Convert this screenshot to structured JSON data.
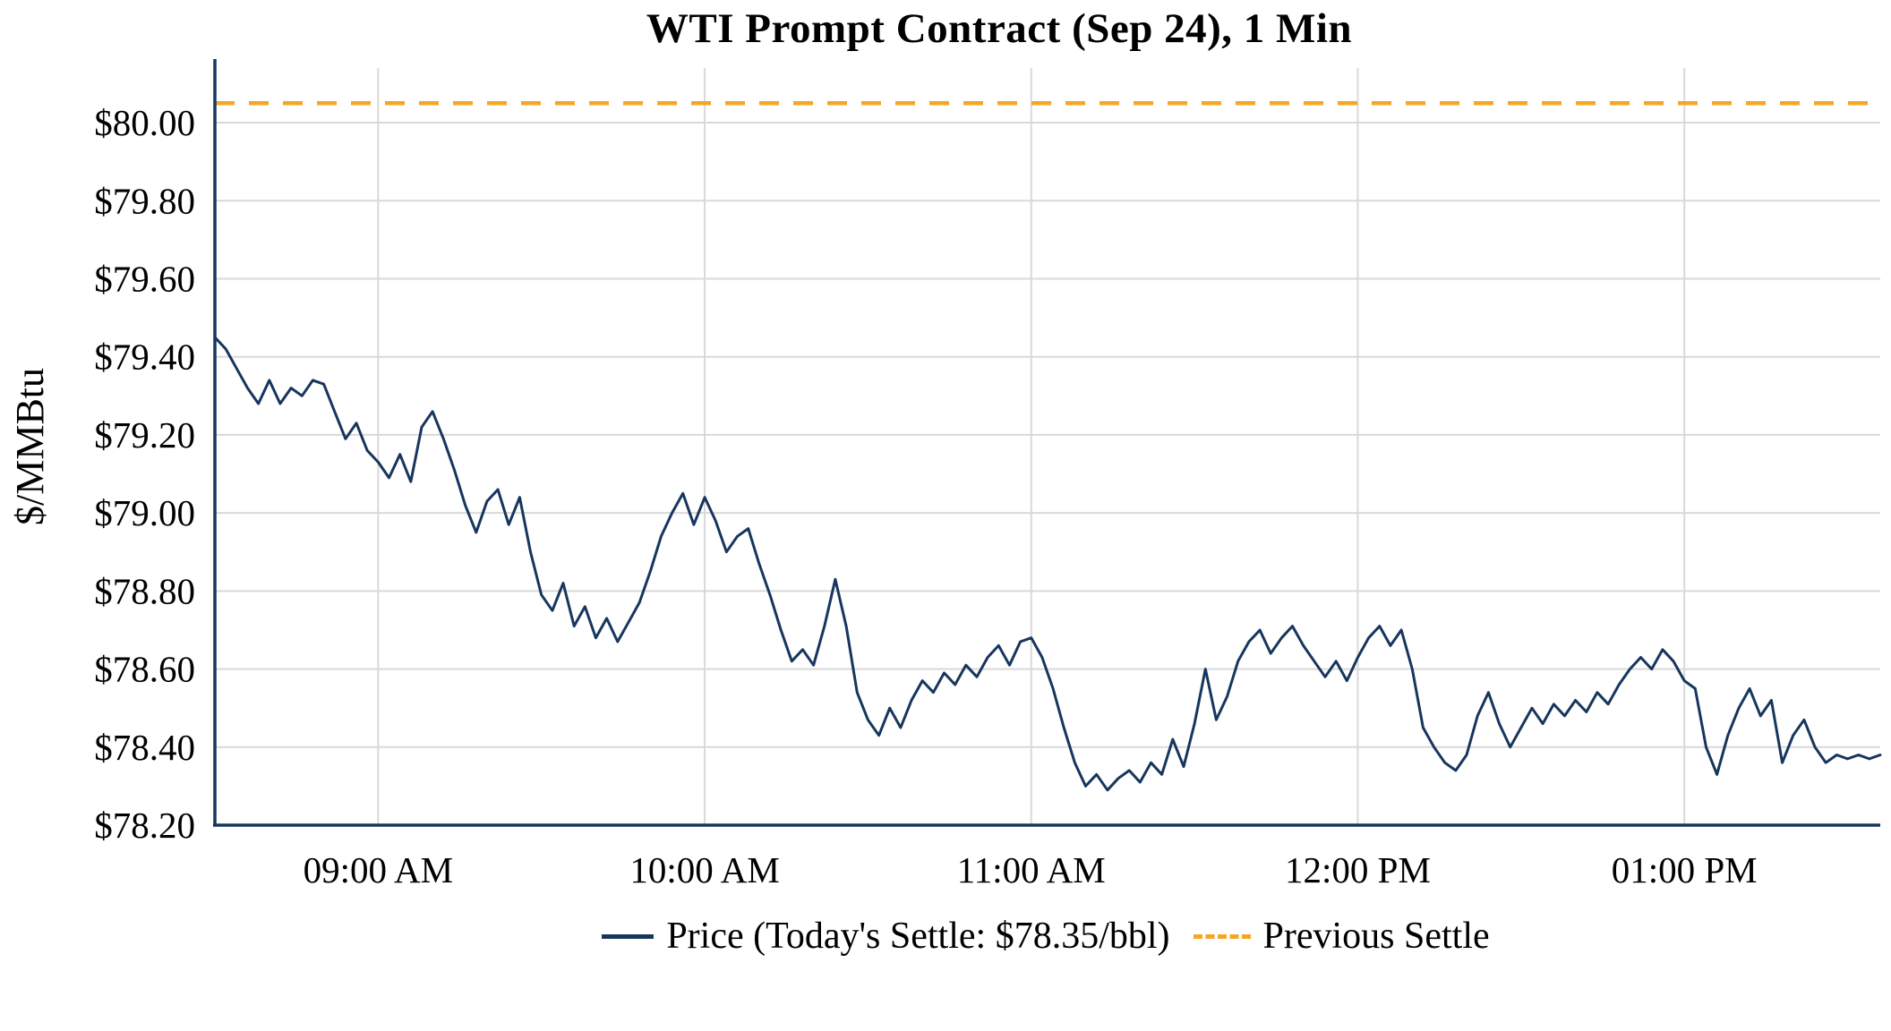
{
  "chart_data": {
    "type": "line",
    "title": "WTI Prompt Contract (Sep 24), 1 Min",
    "xlabel": "",
    "ylabel": "$/MMBtu",
    "ylim": [
      78.2,
      80.14
    ],
    "grid": true,
    "legend_position": "bottom-center",
    "y_ticks": [
      78.2,
      78.4,
      78.6,
      78.8,
      79.0,
      79.2,
      79.4,
      79.6,
      79.8,
      80.0
    ],
    "y_tick_labels": [
      "$78.20",
      "$78.40",
      "$78.60",
      "$78.80",
      "$79.00",
      "$79.20",
      "$79.40",
      "$79.60",
      "$79.80",
      "$80.00"
    ],
    "x_domain_minutes": [
      0,
      306
    ],
    "x_domain_note": "minutes elapsed since 08:30 AM",
    "x_ticks": [
      {
        "t": 30,
        "label": "09:00 AM"
      },
      {
        "t": 90,
        "label": "10:00 AM"
      },
      {
        "t": 150,
        "label": "11:00 AM"
      },
      {
        "t": 210,
        "label": "12:00 PM"
      },
      {
        "t": 270,
        "label": "01:00 PM"
      }
    ],
    "previous_settle_value": 80.05,
    "todays_settle_value": 78.35,
    "series": [
      {
        "name": "Price (Today's Settle: $78.35/bbl)",
        "color": "#17365d",
        "style": "solid",
        "t_start_minutes": 0,
        "t_step_minutes": 2,
        "values": [
          79.45,
          79.42,
          79.37,
          79.32,
          79.28,
          79.34,
          79.28,
          79.32,
          79.3,
          79.34,
          79.33,
          79.26,
          79.19,
          79.23,
          79.16,
          79.13,
          79.09,
          79.15,
          79.08,
          79.22,
          79.26,
          79.19,
          79.11,
          79.02,
          78.95,
          79.03,
          79.06,
          78.97,
          79.04,
          78.9,
          78.79,
          78.75,
          78.82,
          78.71,
          78.76,
          78.68,
          78.73,
          78.67,
          78.72,
          78.77,
          78.85,
          78.94,
          79.0,
          79.05,
          78.97,
          79.04,
          78.98,
          78.9,
          78.94,
          78.96,
          78.87,
          78.79,
          78.7,
          78.62,
          78.65,
          78.61,
          78.71,
          78.83,
          78.71,
          78.54,
          78.47,
          78.43,
          78.5,
          78.45,
          78.52,
          78.57,
          78.54,
          78.59,
          78.56,
          78.61,
          78.58,
          78.63,
          78.66,
          78.61,
          78.67,
          78.68,
          78.63,
          78.55,
          78.45,
          78.36,
          78.3,
          78.33,
          78.29,
          78.32,
          78.34,
          78.31,
          78.36,
          78.33,
          78.42,
          78.35,
          78.46,
          78.6,
          78.47,
          78.53,
          78.62,
          78.67,
          78.7,
          78.64,
          78.68,
          78.71,
          78.66,
          78.62,
          78.58,
          78.62,
          78.57,
          78.63,
          78.68,
          78.71,
          78.66,
          78.7,
          78.6,
          78.45,
          78.4,
          78.36,
          78.34,
          78.38,
          78.48,
          78.54,
          78.46,
          78.4,
          78.45,
          78.5,
          78.46,
          78.51,
          78.48,
          78.52,
          78.49,
          78.54,
          78.51,
          78.56,
          78.6,
          78.63,
          78.6,
          78.65,
          78.62,
          78.57,
          78.55,
          78.4,
          78.33,
          78.43,
          78.5,
          78.55,
          78.48,
          78.52,
          78.36,
          78.43,
          78.47,
          78.4,
          78.36,
          78.38,
          78.37,
          78.38,
          78.37,
          78.38
        ]
      },
      {
        "name": "Previous Settle",
        "color": "#F5A623",
        "style": "dashed",
        "constant_value": 80.05
      }
    ],
    "legend": [
      {
        "label": "Price (Today's Settle: $78.35/bbl)",
        "color": "#17365d",
        "style": "solid"
      },
      {
        "label": "Previous Settle",
        "color": "#F5A623",
        "style": "dashed"
      }
    ]
  }
}
